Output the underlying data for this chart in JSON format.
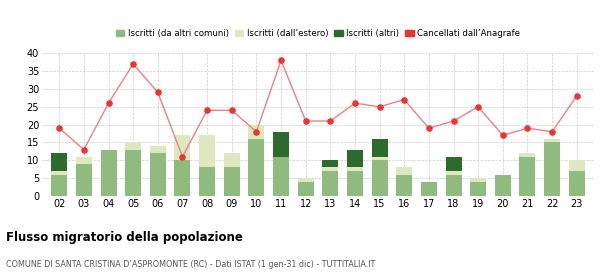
{
  "years": [
    "02",
    "03",
    "04",
    "05",
    "06",
    "07",
    "08",
    "09",
    "10",
    "11",
    "12",
    "13",
    "14",
    "15",
    "16",
    "17",
    "18",
    "19",
    "20",
    "21",
    "22",
    "23"
  ],
  "iscritti_altri_comuni": [
    6,
    9,
    13,
    13,
    12,
    10,
    8,
    8,
    16,
    11,
    4,
    7,
    7,
    10,
    6,
    4,
    6,
    4,
    6,
    11,
    15,
    7
  ],
  "iscritti_estero": [
    1,
    2,
    0,
    2,
    2,
    7,
    9,
    4,
    4,
    0,
    1,
    1,
    1,
    1,
    2,
    0,
    1,
    1,
    0,
    1,
    1,
    3
  ],
  "iscritti_altri": [
    5,
    0,
    0,
    0,
    0,
    0,
    0,
    0,
    0,
    7,
    0,
    2,
    5,
    5,
    0,
    0,
    4,
    0,
    0,
    0,
    0,
    0
  ],
  "cancellati": [
    19,
    13,
    26,
    37,
    29,
    11,
    24,
    24,
    18,
    38,
    21,
    21,
    26,
    25,
    27,
    19,
    21,
    25,
    17,
    19,
    18,
    28
  ],
  "color_altri_comuni": "#8fbb7f",
  "color_estero": "#dde8c0",
  "color_altri": "#2d6b2d",
  "color_cancellati": "#ee3333",
  "color_cancellati_line": "#f08080",
  "title": "Flusso migratorio della popolazione",
  "subtitle": "COMUNE DI SANTA CRISTINA D’ASPROMONTE (RC) - Dati ISTAT (1 gen-31 dic) - TUTTITALIA.IT",
  "legend_labels": [
    "Iscritti (da altri comuni)",
    "Iscritti (dall’estero)",
    "Iscritti (altri)",
    "Cancellati dall’Anagrafe"
  ],
  "ylim": [
    0,
    40
  ],
  "yticks": [
    0,
    5,
    10,
    15,
    20,
    25,
    30,
    35,
    40
  ],
  "bg_color": "#ffffff"
}
